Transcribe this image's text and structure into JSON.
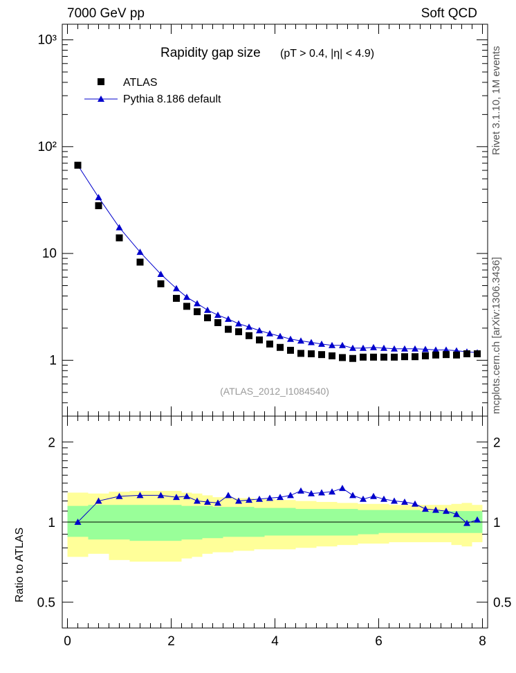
{
  "header": {
    "left": "7000 GeV pp",
    "right": "Soft QCD"
  },
  "side_labels": {
    "rivet": "Rivet 3.1.10, 1M events",
    "mcplots": "mcplots.cern.ch [arXiv:1306.3436]"
  },
  "chart_data": [
    {
      "type": "scatter",
      "title": "Rapidity gap size",
      "subtitle": "(pT > 0.4, |η| < 4.9)",
      "analysis_id": "(ATLAS_2012_I1084540)",
      "ylabel": "",
      "xlabel": "",
      "yscale": "log",
      "ylim": [
        0.3,
        1400
      ],
      "xlim": [
        -0.1,
        8.1
      ],
      "y_tick_labels": [
        "1",
        "10",
        "10²",
        "10³"
      ],
      "legend_position": "top-left",
      "series": [
        {
          "name": "ATLAS",
          "marker": "square",
          "color": "#000000",
          "x": [
            0.2,
            0.6,
            1.0,
            1.4,
            1.8,
            2.1,
            2.3,
            2.5,
            2.7,
            2.9,
            3.1,
            3.3,
            3.5,
            3.7,
            3.9,
            4.1,
            4.3,
            4.5,
            4.7,
            4.9,
            5.1,
            5.3,
            5.5,
            5.7,
            5.9,
            6.1,
            6.3,
            6.5,
            6.7,
            6.9,
            7.1,
            7.3,
            7.5,
            7.7,
            7.9
          ],
          "y": [
            67,
            28,
            14,
            8.3,
            5.2,
            3.8,
            3.2,
            2.85,
            2.5,
            2.25,
            1.95,
            1.85,
            1.7,
            1.55,
            1.42,
            1.32,
            1.24,
            1.16,
            1.15,
            1.13,
            1.1,
            1.06,
            1.04,
            1.07,
            1.07,
            1.07,
            1.07,
            1.08,
            1.08,
            1.1,
            1.12,
            1.13,
            1.12,
            1.15,
            1.15
          ]
        },
        {
          "name": "Pythia 8.186 default",
          "marker": "triangle",
          "color": "#0000cc",
          "x": [
            0.2,
            0.6,
            1.0,
            1.4,
            1.8,
            2.1,
            2.3,
            2.5,
            2.7,
            2.9,
            3.1,
            3.3,
            3.5,
            3.7,
            3.9,
            4.1,
            4.3,
            4.5,
            4.7,
            4.9,
            5.1,
            5.3,
            5.5,
            5.7,
            5.9,
            6.1,
            6.3,
            6.5,
            6.7,
            6.9,
            7.1,
            7.3,
            7.5,
            7.7,
            7.9
          ],
          "y": [
            67,
            33.5,
            17.5,
            10.3,
            6.4,
            4.7,
            3.9,
            3.4,
            2.95,
            2.65,
            2.43,
            2.2,
            2.05,
            1.9,
            1.78,
            1.68,
            1.58,
            1.52,
            1.47,
            1.42,
            1.38,
            1.38,
            1.3,
            1.3,
            1.32,
            1.3,
            1.28,
            1.28,
            1.28,
            1.27,
            1.25,
            1.25,
            1.23,
            1.2,
            1.18
          ]
        }
      ]
    },
    {
      "type": "scatter",
      "ylabel": "Ratio to ATLAS",
      "xlabel": "",
      "yscale": "log",
      "ylim": [
        0.4,
        2.5
      ],
      "xlim": [
        -0.1,
        8.1
      ],
      "x_tick_labels": [
        "0",
        "2",
        "4",
        "6",
        "8"
      ],
      "y_tick_labels": [
        "0.5",
        "1",
        "2"
      ],
      "bands": {
        "x_edges": [
          0,
          0.4,
          0.8,
          1.2,
          1.6,
          2.0,
          2.2,
          2.4,
          2.6,
          2.8,
          3.0,
          3.2,
          3.4,
          3.6,
          3.8,
          4.0,
          4.2,
          4.4,
          4.6,
          4.8,
          5.0,
          5.2,
          5.4,
          5.6,
          5.8,
          6.0,
          6.2,
          6.4,
          6.6,
          6.8,
          7.0,
          7.2,
          7.4,
          7.6,
          7.8,
          8.0
        ],
        "inner_low": [
          0.88,
          0.86,
          0.86,
          0.85,
          0.85,
          0.85,
          0.86,
          0.86,
          0.87,
          0.87,
          0.88,
          0.88,
          0.88,
          0.88,
          0.89,
          0.89,
          0.89,
          0.89,
          0.89,
          0.89,
          0.89,
          0.89,
          0.89,
          0.9,
          0.9,
          0.91,
          0.91,
          0.91,
          0.91,
          0.91,
          0.91,
          0.91,
          0.91,
          0.91,
          0.91
        ],
        "inner_high": [
          1.15,
          1.16,
          1.16,
          1.16,
          1.16,
          1.16,
          1.15,
          1.15,
          1.15,
          1.14,
          1.14,
          1.14,
          1.14,
          1.13,
          1.13,
          1.13,
          1.13,
          1.12,
          1.12,
          1.12,
          1.12,
          1.12,
          1.12,
          1.11,
          1.11,
          1.11,
          1.11,
          1.11,
          1.11,
          1.1,
          1.1,
          1.1,
          1.1,
          1.1,
          1.1
        ],
        "outer_low": [
          0.74,
          0.76,
          0.72,
          0.71,
          0.71,
          0.71,
          0.73,
          0.74,
          0.76,
          0.77,
          0.77,
          0.78,
          0.78,
          0.79,
          0.79,
          0.79,
          0.79,
          0.8,
          0.8,
          0.81,
          0.81,
          0.82,
          0.82,
          0.83,
          0.83,
          0.83,
          0.84,
          0.84,
          0.84,
          0.84,
          0.84,
          0.84,
          0.82,
          0.81,
          0.84
        ],
        "outer_high": [
          1.29,
          1.28,
          1.3,
          1.31,
          1.31,
          1.31,
          1.29,
          1.28,
          1.26,
          1.24,
          1.24,
          1.23,
          1.23,
          1.22,
          1.22,
          1.21,
          1.21,
          1.2,
          1.2,
          1.19,
          1.19,
          1.18,
          1.18,
          1.17,
          1.17,
          1.17,
          1.16,
          1.16,
          1.16,
          1.16,
          1.16,
          1.16,
          1.17,
          1.18,
          1.16
        ]
      },
      "series": [
        {
          "name": "Pythia 8.186 default",
          "marker": "triangle",
          "color": "#0000cc",
          "x": [
            0.2,
            0.6,
            1.0,
            1.4,
            1.8,
            2.1,
            2.3,
            2.5,
            2.7,
            2.9,
            3.1,
            3.3,
            3.5,
            3.7,
            3.9,
            4.1,
            4.3,
            4.5,
            4.7,
            4.9,
            5.1,
            5.3,
            5.5,
            5.7,
            5.9,
            6.1,
            6.3,
            6.5,
            6.7,
            6.9,
            7.1,
            7.3,
            7.5,
            7.7,
            7.9
          ],
          "y": [
            1.0,
            1.2,
            1.25,
            1.26,
            1.26,
            1.24,
            1.25,
            1.2,
            1.19,
            1.18,
            1.26,
            1.2,
            1.21,
            1.22,
            1.23,
            1.24,
            1.26,
            1.31,
            1.28,
            1.29,
            1.3,
            1.34,
            1.26,
            1.22,
            1.25,
            1.22,
            1.2,
            1.19,
            1.17,
            1.12,
            1.11,
            1.1,
            1.07,
            0.99,
            1.02
          ]
        }
      ]
    }
  ]
}
